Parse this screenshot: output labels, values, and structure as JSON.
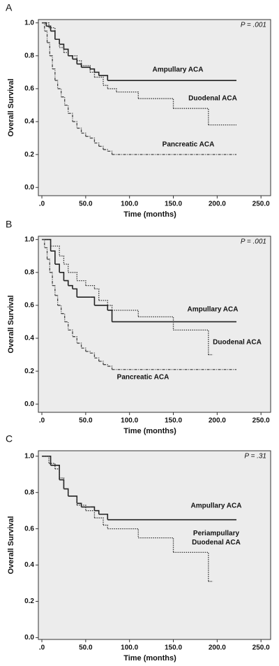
{
  "chart_data": [
    {
      "type": "step",
      "panel": "A",
      "annotation": "P = .001",
      "x_label": "Time (months)",
      "y_label": "Overall Survival",
      "xlim": [
        -4,
        261
      ],
      "ylim": [
        -0.05,
        1.02
      ],
      "xticks": [
        {
          "value": 0,
          "label": ".0"
        },
        {
          "value": 50,
          "label": "50.0"
        },
        {
          "value": 100,
          "label": "100.0"
        },
        {
          "value": 150,
          "label": "150.0"
        },
        {
          "value": 200,
          "label": "200.0"
        },
        {
          "value": 250,
          "label": "250.0"
        }
      ],
      "yticks": [
        {
          "value": 0,
          "label": "0.0"
        },
        0.2,
        0.4,
        0.6,
        0.8,
        {
          "value": 1,
          "label": "1.0"
        }
      ],
      "series": [
        {
          "name": "Ampullary ACA",
          "color": "#222222",
          "dash": "solid",
          "x": [
            0,
            5,
            10,
            15,
            20,
            25,
            30,
            35,
            40,
            45,
            55,
            60,
            65,
            75,
            222
          ],
          "values": [
            1.0,
            0.98,
            0.95,
            0.9,
            0.87,
            0.84,
            0.8,
            0.78,
            0.75,
            0.73,
            0.72,
            0.7,
            0.68,
            0.65,
            0.65
          ]
        },
        {
          "name": "Duodenal ACA",
          "color": "#333333",
          "dash": "dotted",
          "x": [
            0,
            8,
            15,
            20,
            25,
            30,
            40,
            45,
            55,
            60,
            70,
            75,
            85,
            110,
            150,
            190,
            222
          ],
          "values": [
            1.0,
            0.97,
            0.9,
            0.85,
            0.82,
            0.8,
            0.77,
            0.74,
            0.7,
            0.67,
            0.62,
            0.6,
            0.58,
            0.54,
            0.48,
            0.38,
            0.38
          ]
        },
        {
          "name": "Pancreatic ACA",
          "color": "#444444",
          "dash": "dashdot",
          "x": [
            0,
            3,
            6,
            9,
            12,
            15,
            18,
            22,
            26,
            30,
            35,
            40,
            45,
            50,
            55,
            60,
            65,
            70,
            75,
            80,
            222
          ],
          "values": [
            1.0,
            0.95,
            0.88,
            0.8,
            0.72,
            0.65,
            0.6,
            0.55,
            0.5,
            0.45,
            0.4,
            0.36,
            0.33,
            0.31,
            0.3,
            0.27,
            0.25,
            0.23,
            0.22,
            0.2,
            0.2
          ]
        }
      ]
    },
    {
      "type": "step",
      "panel": "B",
      "annotation": "P = .001",
      "x_label": "Time (months)",
      "y_label": "Overall Survival",
      "xlim": [
        -4,
        261
      ],
      "ylim": [
        -0.05,
        1.02
      ],
      "xticks": [
        {
          "value": 0,
          "label": ".0"
        },
        {
          "value": 50,
          "label": "50.0"
        },
        {
          "value": 100,
          "label": "100.0"
        },
        {
          "value": 150,
          "label": "150.0"
        },
        {
          "value": 200,
          "label": "200.0"
        },
        {
          "value": 250,
          "label": "250.0"
        }
      ],
      "yticks": [
        {
          "value": 0,
          "label": "0.0"
        },
        0.2,
        0.4,
        0.6,
        0.8,
        {
          "value": 1,
          "label": "1.0"
        }
      ],
      "series": [
        {
          "name": "Ampullary ACA",
          "color": "#222222",
          "dash": "solid",
          "x": [
            0,
            10,
            15,
            20,
            25,
            30,
            35,
            40,
            55,
            60,
            75,
            80,
            222
          ],
          "values": [
            1.0,
            0.93,
            0.85,
            0.8,
            0.75,
            0.72,
            0.7,
            0.65,
            0.65,
            0.6,
            0.57,
            0.5,
            0.5
          ]
        },
        {
          "name": "Duodenal ACA",
          "color": "#333333",
          "dash": "dotted",
          "x": [
            0,
            10,
            20,
            25,
            30,
            40,
            50,
            60,
            65,
            75,
            80,
            110,
            150,
            190,
            195
          ],
          "values": [
            1.0,
            0.96,
            0.9,
            0.85,
            0.8,
            0.75,
            0.72,
            0.7,
            0.63,
            0.6,
            0.57,
            0.53,
            0.45,
            0.3,
            0.3
          ]
        },
        {
          "name": "Pancreatic ACA",
          "color": "#444444",
          "dash": "dashdot",
          "x": [
            0,
            3,
            6,
            9,
            12,
            15,
            18,
            22,
            26,
            30,
            35,
            40,
            45,
            50,
            55,
            60,
            65,
            70,
            75,
            80,
            222
          ],
          "values": [
            1.0,
            0.95,
            0.88,
            0.8,
            0.72,
            0.66,
            0.6,
            0.55,
            0.5,
            0.45,
            0.41,
            0.37,
            0.34,
            0.32,
            0.31,
            0.28,
            0.26,
            0.24,
            0.23,
            0.21,
            0.21
          ]
        }
      ]
    },
    {
      "type": "step",
      "panel": "C",
      "annotation": "P = .31",
      "x_label": "Time (months)",
      "y_label": "Overall Survival",
      "xlim": [
        -4,
        261
      ],
      "ylim": [
        -0.01,
        1.03
      ],
      "xticks": [
        {
          "value": 0,
          "label": ".0"
        },
        {
          "value": 50,
          "label": "50.0"
        },
        {
          "value": 100,
          "label": "100.0"
        },
        {
          "value": 150,
          "label": "150.0"
        },
        {
          "value": 200,
          "label": "200.0"
        },
        {
          "value": 250,
          "label": "250.0"
        }
      ],
      "yticks": [
        {
          "value": 0,
          "label": "0.0"
        },
        0.2,
        0.4,
        0.6,
        0.8,
        {
          "value": 1,
          "label": "1.0"
        }
      ],
      "series": [
        {
          "name": "Ampullary ACA",
          "color": "#222222",
          "dash": "solid",
          "x": [
            0,
            10,
            20,
            25,
            30,
            40,
            45,
            55,
            60,
            65,
            75,
            222
          ],
          "values": [
            1.0,
            0.95,
            0.87,
            0.82,
            0.78,
            0.74,
            0.72,
            0.72,
            0.7,
            0.68,
            0.65,
            0.65
          ]
        },
        {
          "name": "Periampullary Duodenal ACA",
          "color": "#333333",
          "dash": "dotted",
          "x": [
            0,
            8,
            15,
            20,
            25,
            30,
            40,
            50,
            60,
            70,
            75,
            110,
            150,
            190,
            195
          ],
          "values": [
            1.0,
            0.96,
            0.93,
            0.88,
            0.82,
            0.78,
            0.73,
            0.7,
            0.66,
            0.62,
            0.6,
            0.55,
            0.47,
            0.31,
            0.31
          ]
        }
      ]
    }
  ]
}
